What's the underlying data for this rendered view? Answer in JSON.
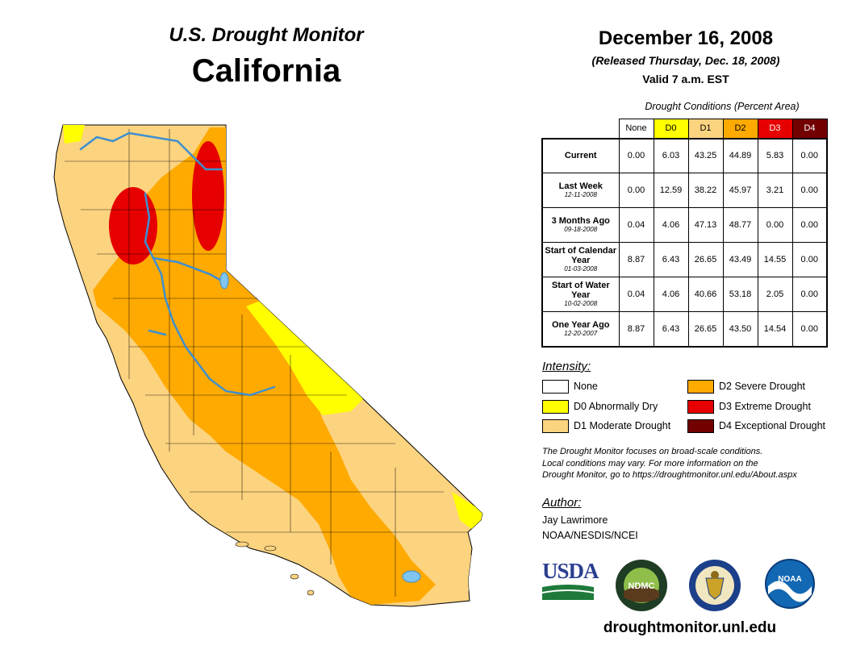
{
  "header": {
    "title": "U.S. Drought Monitor",
    "state": "California",
    "date": "December 16, 2008",
    "released": "(Released Thursday, Dec. 18, 2008)",
    "valid": "Valid 7 a.m. EST"
  },
  "table": {
    "caption": "Drought Conditions (Percent Area)",
    "columns": [
      "None",
      "D0",
      "D1",
      "D2",
      "D3",
      "D4"
    ],
    "rows": [
      {
        "label": "Current",
        "date": "",
        "values": [
          "0.00",
          "6.03",
          "43.25",
          "44.89",
          "5.83",
          "0.00"
        ]
      },
      {
        "label": "Last Week",
        "date": "12-11-2008",
        "values": [
          "0.00",
          "12.59",
          "38.22",
          "45.97",
          "3.21",
          "0.00"
        ]
      },
      {
        "label": "3 Months Ago",
        "date": "09-18-2008",
        "values": [
          "0.04",
          "4.06",
          "47.13",
          "48.77",
          "0.00",
          "0.00"
        ]
      },
      {
        "label": "Start of Calendar Year",
        "date": "01-03-2008",
        "values": [
          "8.87",
          "6.43",
          "26.65",
          "43.49",
          "14.55",
          "0.00"
        ]
      },
      {
        "label": "Start of Water Year",
        "date": "10-02-2008",
        "values": [
          "0.04",
          "4.06",
          "40.66",
          "53.18",
          "2.05",
          "0.00"
        ]
      },
      {
        "label": "One Year Ago",
        "date": "12-20-2007",
        "values": [
          "8.87",
          "6.43",
          "26.65",
          "43.50",
          "14.54",
          "0.00"
        ]
      }
    ]
  },
  "legend": {
    "title": "Intensity:",
    "items": [
      {
        "label": "None",
        "color": "#ffffff"
      },
      {
        "label": "D0 Abnormally Dry",
        "color": "#ffff00"
      },
      {
        "label": "D1 Moderate Drought",
        "color": "#fcd37f"
      },
      {
        "label": "D2 Severe Drought",
        "color": "#ffaa00"
      },
      {
        "label": "D3 Extreme Drought",
        "color": "#e60000"
      },
      {
        "label": "D4 Exceptional Drought",
        "color": "#730000"
      }
    ]
  },
  "note": {
    "line1": "The Drought Monitor focuses on broad-scale conditions.",
    "line2": "Local conditions may vary. For more information on the",
    "line3": "Drought Monitor, go to https://droughtmonitor.unl.edu/About.aspx"
  },
  "author": {
    "title": "Author:",
    "name": "Jay Lawrimore",
    "org": "NOAA/NESDIS/NCEI"
  },
  "logos": {
    "usda": "USDA",
    "ndmc": "NDMC",
    "noaa": "NOAA"
  },
  "footer": {
    "url": "droughtmonitor.unl.edu"
  },
  "colors": {
    "d0": "#ffff00",
    "d1": "#fcd37f",
    "d2": "#ffaa00",
    "d3": "#e60000",
    "d4": "#730000",
    "water": "#7fc5ef"
  }
}
